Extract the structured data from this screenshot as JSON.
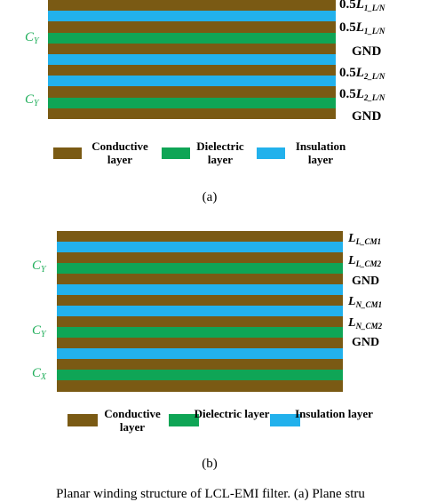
{
  "colors": {
    "conductive": "#7a5a14",
    "dielectric": "#0fa556",
    "insulation": "#22b1ec",
    "side_label": "#1fae5a"
  },
  "diagram_a": {
    "layers": [
      "conductive",
      "insulation",
      "conductive",
      "dielectric",
      "conductive",
      "insulation",
      "conductive",
      "insulation",
      "conductive",
      "dielectric",
      "conductive"
    ],
    "side_labels": [
      {
        "main": "C",
        "sub": "Y"
      },
      {
        "main": "C",
        "sub": "Y"
      }
    ],
    "right_labels": [
      {
        "pre": "0.5",
        "main": "L",
        "sub": "1_L/N"
      },
      {
        "pre": "0.5",
        "main": "L",
        "sub": "1_L/N"
      },
      {
        "pre": "",
        "main": "GND",
        "sub": ""
      },
      {
        "pre": "0.5",
        "main": "L",
        "sub": "2_L/N"
      },
      {
        "pre": "0.5",
        "main": "L",
        "sub": "2_L/N"
      },
      {
        "pre": "",
        "main": "GND",
        "sub": ""
      }
    ],
    "legend": [
      {
        "label": "Conductive layer",
        "color_key": "conductive"
      },
      {
        "label": "Dielectric layer",
        "color_key": "dielectric"
      },
      {
        "label": "Insulation layer",
        "color_key": "insulation"
      }
    ],
    "caption": "(a)"
  },
  "diagram_b": {
    "layers": [
      "conductive",
      "insulation",
      "conductive",
      "dielectric",
      "conductive",
      "insulation",
      "conductive",
      "insulation",
      "conductive",
      "dielectric",
      "conductive",
      "insulation",
      "conductive",
      "dielectric",
      "conductive"
    ],
    "side_labels": [
      {
        "main": "C",
        "sub": "Y"
      },
      {
        "main": "C",
        "sub": "Y"
      },
      {
        "main": "C",
        "sub": "X"
      }
    ],
    "right_labels": [
      {
        "main": "L",
        "sub": "L_CM1"
      },
      {
        "main": "L",
        "sub": "L_CM2"
      },
      {
        "main": "GND",
        "sub": ""
      },
      {
        "main": "L",
        "sub": "N_CM1"
      },
      {
        "main": "L",
        "sub": "N_CM2"
      },
      {
        "main": "GND",
        "sub": ""
      }
    ],
    "legend": [
      {
        "label": "Conductive layer",
        "color_key": "conductive"
      },
      {
        "label": "Dielectric layer",
        "color_key": "dielectric"
      },
      {
        "label": "Insulation layer",
        "color_key": "insulation"
      }
    ],
    "caption": "(b)"
  },
  "figure_caption": "Planar winding structure of LCL-EMI filter. (a) Plane stru"
}
